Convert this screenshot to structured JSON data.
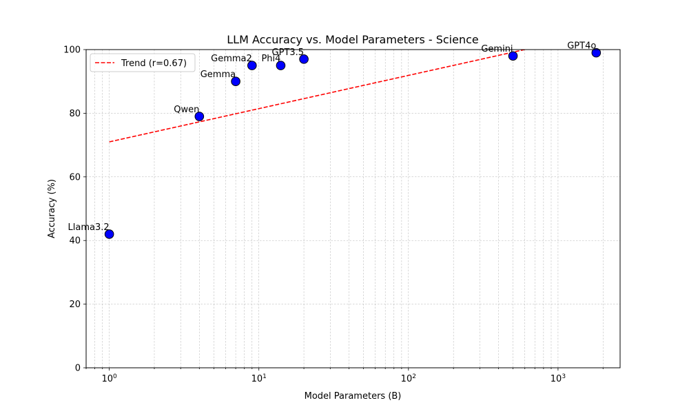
{
  "chart_data": {
    "type": "scatter",
    "title": "LLM Accuracy vs. Model Parameters - Science",
    "xlabel": "Model Parameters (B)",
    "ylabel": "Accuracy (%)",
    "xscale": "log",
    "xlim": [
      0.7,
      2600
    ],
    "ylim": [
      0,
      100
    ],
    "xticks": [
      {
        "value": 1,
        "base": "10",
        "exp": "0"
      },
      {
        "value": 10,
        "base": "10",
        "exp": "1"
      },
      {
        "value": 100,
        "base": "10",
        "exp": "2"
      },
      {
        "value": 1000,
        "base": "10",
        "exp": "3"
      }
    ],
    "yticks": [
      0,
      20,
      40,
      60,
      80,
      100
    ],
    "grid": true,
    "legend": {
      "placement": "top-left",
      "entries": [
        "Trend (r=0.67)"
      ]
    },
    "points": [
      {
        "label": "Llama3.2",
        "x": 1,
        "y": 42
      },
      {
        "label": "Qwen",
        "x": 4,
        "y": 79
      },
      {
        "label": "Gemma",
        "x": 7,
        "y": 90
      },
      {
        "label": "Gemma2",
        "x": 9,
        "y": 95
      },
      {
        "label": "Phi4",
        "x": 14,
        "y": 95
      },
      {
        "label": "GPT3.5",
        "x": 20,
        "y": 97
      },
      {
        "label": "Gemini",
        "x": 500,
        "y": 98
      },
      {
        "label": "GPT4o",
        "x": 1800,
        "y": 99
      }
    ],
    "trend": {
      "name": "Trend (r=0.67)",
      "x": [
        1,
        1800
      ],
      "y": [
        71,
        105
      ]
    },
    "colors": {
      "points": "#0000ff",
      "point_edge": "#000000",
      "trend": "#ff0000",
      "grid": "#b0b0b0"
    }
  }
}
